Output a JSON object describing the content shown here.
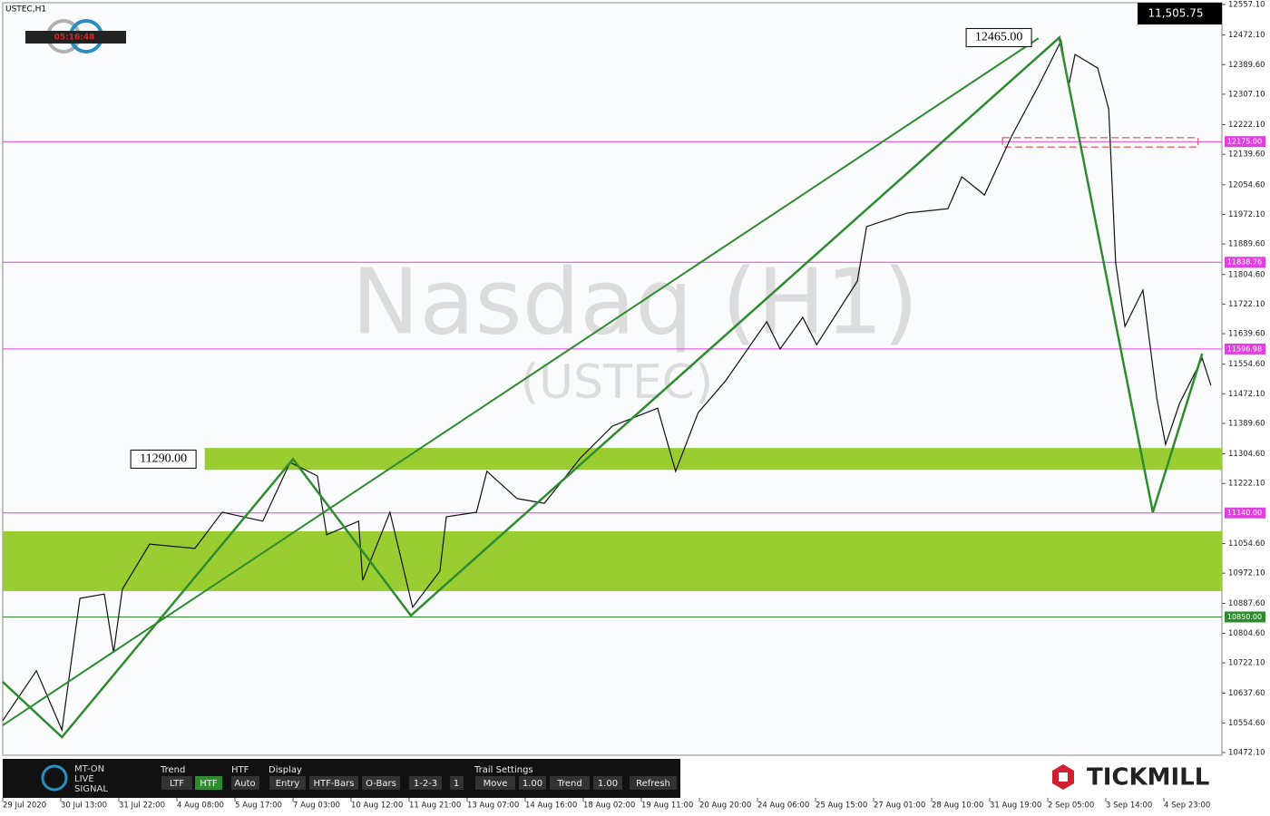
{
  "header": {
    "symbol": "USTEC,H1",
    "timer": "05:16:48",
    "last_price": "11,505.75"
  },
  "watermark": {
    "title": "Nasdaq (H1)",
    "subtitle": "(USTEC)"
  },
  "chart_data": {
    "type": "line",
    "xlim": [
      0,
      21
    ],
    "ylim": [
      10472.1,
      12557.1
    ],
    "yticks": [
      {
        "value": 12557.1,
        "label": "12557.10"
      },
      {
        "value": 12472.1,
        "label": "12472.10"
      },
      {
        "value": 12389.6,
        "label": "12389.60"
      },
      {
        "value": 12307.1,
        "label": "12307.10"
      },
      {
        "value": 12222.1,
        "label": "12222.10"
      },
      {
        "value": 12139.6,
        "label": "12139.60"
      },
      {
        "value": 12054.6,
        "label": "12054.60"
      },
      {
        "value": 11972.1,
        "label": "11972.10"
      },
      {
        "value": 11889.6,
        "label": "11889.60"
      },
      {
        "value": 11804.6,
        "label": "11804.60"
      },
      {
        "value": 11722.1,
        "label": "11722.10"
      },
      {
        "value": 11639.6,
        "label": "11639.60"
      },
      {
        "value": 11554.6,
        "label": "11554.60"
      },
      {
        "value": 11472.1,
        "label": "11472.10"
      },
      {
        "value": 11389.6,
        "label": "11389.60"
      },
      {
        "value": 11304.6,
        "label": "11304.60"
      },
      {
        "value": 11222.1,
        "label": "11222.10"
      },
      {
        "value": 11054.6,
        "label": "11054.60"
      },
      {
        "value": 10972.1,
        "label": "10972.10"
      },
      {
        "value": 10887.6,
        "label": "10887.60"
      },
      {
        "value": 10804.6,
        "label": "10804.60"
      },
      {
        "value": 10722.1,
        "label": "10722.10"
      },
      {
        "value": 10637.6,
        "label": "10637.60"
      },
      {
        "value": 10554.6,
        "label": "10554.60"
      },
      {
        "value": 10472.1,
        "label": "10472.10"
      }
    ],
    "xticks": [
      {
        "value": 0,
        "label": "29 Jul 2020"
      },
      {
        "value": 1,
        "label": "30 Jul 13:00"
      },
      {
        "value": 2,
        "label": "31 Jul 22:00"
      },
      {
        "value": 3,
        "label": "4 Aug 08:00"
      },
      {
        "value": 4,
        "label": "5 Aug 17:00"
      },
      {
        "value": 5,
        "label": "7 Aug 03:00"
      },
      {
        "value": 6,
        "label": "10 Aug 12:00"
      },
      {
        "value": 7,
        "label": "11 Aug 21:00"
      },
      {
        "value": 8,
        "label": "13 Aug 07:00"
      },
      {
        "value": 9,
        "label": "14 Aug 16:00"
      },
      {
        "value": 10,
        "label": "18 Aug 02:00"
      },
      {
        "value": 11,
        "label": "19 Aug 11:00"
      },
      {
        "value": 12,
        "label": "20 Aug 20:00"
      },
      {
        "value": 13,
        "label": "24 Aug 06:00"
      },
      {
        "value": 14,
        "label": "25 Aug 15:00"
      },
      {
        "value": 15,
        "label": "27 Aug 01:00"
      },
      {
        "value": 16,
        "label": "28 Aug 10:00"
      },
      {
        "value": 17,
        "label": "31 Aug 19:00"
      },
      {
        "value": 18,
        "label": "2 Sep 05:00"
      },
      {
        "value": 19,
        "label": "3 Sep 14:00"
      },
      {
        "value": 20,
        "label": "4 Sep 23:00"
      }
    ],
    "price": {
      "color": "#111111",
      "x": [
        0,
        0.58,
        1.02,
        1.33,
        1.75,
        1.91,
        2.06,
        2.53,
        3.31,
        3.78,
        4.48,
        4.95,
        5.42,
        5.58,
        6.13,
        6.2,
        6.67,
        7.06,
        7.53,
        7.64,
        8.16,
        8.34,
        8.86,
        9.33,
        9.95,
        10.5,
        11.28,
        11.59,
        11.98,
        12.45,
        13.16,
        13.39,
        13.78,
        14.02,
        14.72,
        14.88,
        15.58,
        16.28,
        16.52,
        16.91,
        17.38,
        17.84,
        18.23,
        18.36,
        18.47,
        18.86,
        19.05,
        19.17,
        19.33,
        19.64,
        19.88,
        20.03,
        20.27,
        20.66,
        20.81
      ],
      "values": [
        10561,
        10700,
        10535,
        10902,
        10914,
        10750,
        10927,
        11053,
        11041,
        11142,
        11117,
        11281,
        11243,
        11079,
        11117,
        10952,
        11142,
        10877,
        10978,
        11129,
        11142,
        11256,
        11180,
        11167,
        11293,
        11382,
        11432,
        11256,
        11420,
        11508,
        11673,
        11597,
        11685,
        11609,
        11786,
        11938,
        11976,
        11988,
        12077,
        12026,
        12191,
        12330,
        12456,
        12330,
        12418,
        12380,
        12266,
        11837,
        11660,
        11761,
        11458,
        11331,
        11445,
        11571,
        11496
      ]
    },
    "zigzag": {
      "color": "#2e8b2e",
      "x": [
        0,
        1.02,
        5,
        7.03,
        18.2,
        19.81,
        20.66
      ],
      "values": [
        10669,
        10515,
        11290,
        10854,
        12465,
        11142,
        11584
      ]
    },
    "trend_line": {
      "color": "#2e8b2e",
      "x": [
        0,
        17.84
      ],
      "values": [
        10548,
        12463
      ]
    },
    "levels": [
      {
        "value": 12175,
        "label": "12175.00",
        "color": "#e040e0"
      },
      {
        "value": 11838.76,
        "label": "11838.76",
        "color": "#e040e0"
      },
      {
        "value": 11596.98,
        "label": "11596.98",
        "color": "#e040e0"
      },
      {
        "value": 11140,
        "label": "11140.00",
        "color": "#e040e0"
      },
      {
        "value": 10850,
        "label": "10850.00",
        "color": "#2e8b2e"
      }
    ],
    "zones": [
      {
        "low": 11260,
        "high": 11321,
        "x_start": 3.48,
        "color": "#9acd32"
      },
      {
        "low": 10922,
        "high": 11089,
        "x_start": 0,
        "color": "#9acd32"
      }
    ],
    "resistance_box": {
      "low": 12160,
      "high": 12186,
      "x_start": 17.22,
      "x_end": 20.59,
      "color": "#e03030"
    },
    "annotations": [
      {
        "value": 12465,
        "label": "12465.00",
        "x": 17.72
      },
      {
        "value": 11290,
        "label": "11290.00",
        "x": 3.33
      }
    ]
  },
  "toolbar": {
    "trend": "Trend",
    "ltf": "LTF",
    "htf_btn": "HTF",
    "htf": "HTF",
    "auto": "Auto",
    "display": "Display",
    "entry": "Entry",
    "htf_bars": "HTF-Bars",
    "o_bars": "O-Bars",
    "one_two_three": "1-2-3",
    "one": "1",
    "trail": "Trail Settings",
    "move": "Move",
    "move_val": "1.00",
    "trend2": "Trend",
    "trend_val": "1.00",
    "refresh": "Refresh"
  },
  "brand": {
    "logo_line1": "MT-ON",
    "logo_line2": "LIVE",
    "logo_line3": "SIGNAL",
    "tickmill": "TICKMILL"
  }
}
